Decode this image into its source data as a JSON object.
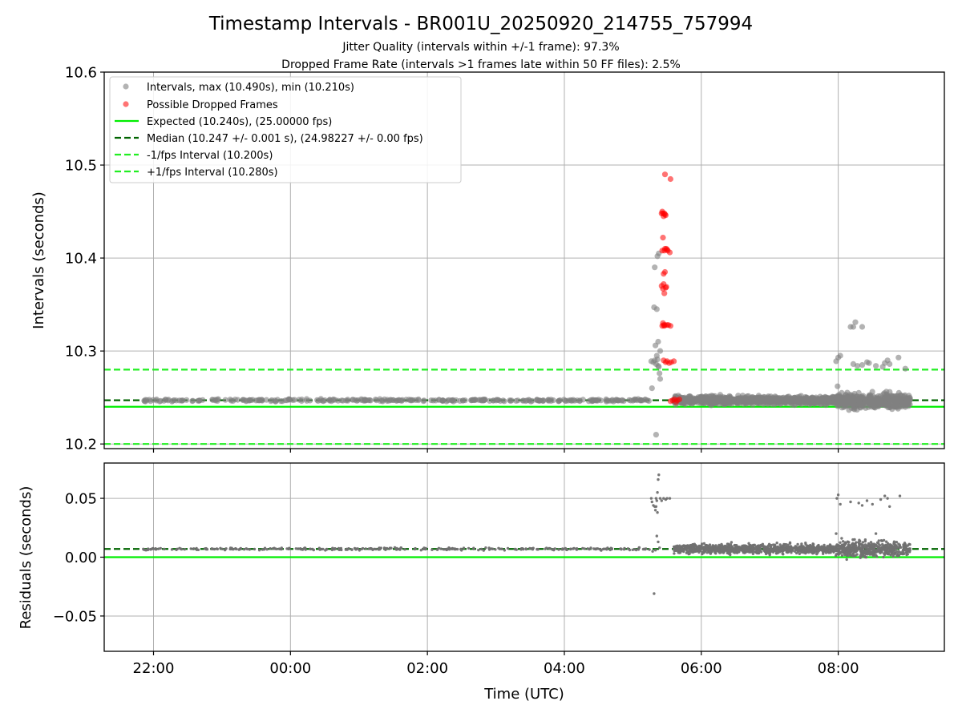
{
  "figure": {
    "title": "Timestamp Intervals - BR001U_20250920_214755_757994",
    "subtitle_jitter": "Jitter Quality (intervals within +/-1 frame): 97.3%",
    "subtitle_dropped": "Dropped Frame Rate (intervals >1 frames late within 50 FF files): 2.5%",
    "xlabel": "Time (UTC)"
  },
  "colors": {
    "intervals": "#808080",
    "dropped": "#ff0000",
    "expected": "#00ee00",
    "median": "#006400",
    "fps_bounds": "#22ee22",
    "grid": "#b0b0b0",
    "residuals": "#707070"
  },
  "chart_data": [
    {
      "type": "scatter",
      "panel": "intervals",
      "ylabel": "Intervals (seconds)",
      "xlim": [
        -0.72,
        11.55
      ],
      "ylim": [
        10.195,
        10.6
      ],
      "x_unit": "hours relative to 22:00 UTC",
      "x_ticks": [
        0,
        2,
        4,
        6,
        8,
        10
      ],
      "x_tick_labels": [
        "22:00",
        "00:00",
        "02:00",
        "04:00",
        "06:00",
        "08:00"
      ],
      "y_ticks": [
        10.2,
        10.3,
        10.4,
        10.5,
        10.6
      ],
      "y_tick_labels": [
        "10.2",
        "10.3",
        "10.4",
        "10.5",
        "10.6"
      ],
      "grid": true,
      "legend_position": "top-left",
      "legend": [
        "Intervals, max (10.490s), min (10.210s)",
        "Possible Dropped Frames",
        "Expected (10.240s), (25.00000 fps)",
        "Median (10.247 +/- 0.001 s), (24.98227 +/- 0.00 fps)",
        "-1/fps Interval (10.200s)",
        "+1/fps Interval (10.280s)"
      ],
      "reference_lines": [
        {
          "name": "expected",
          "y": 10.24,
          "style": "solid"
        },
        {
          "name": "median",
          "y": 10.247,
          "style": "dashed"
        },
        {
          "name": "minus_one_fps",
          "y": 10.2,
          "style": "dashed"
        },
        {
          "name": "plus_one_fps",
          "y": 10.28,
          "style": "dashed"
        }
      ],
      "series": [
        {
          "name": "intervals_baseline",
          "x_range": [
            -0.15,
            7.25
          ],
          "y": 10.247,
          "spread": 0.0008,
          "count": 300
        },
        {
          "name": "intervals_burst",
          "x": [
            7.27,
            7.3,
            7.32,
            7.34,
            7.35,
            7.36,
            7.37,
            7.38,
            7.39,
            7.4,
            7.32,
            7.36,
            7.38,
            7.31,
            7.35,
            7.37,
            7.33,
            7.4,
            7.28,
            7.34
          ],
          "y": [
            10.289,
            10.288,
            10.29,
            10.286,
            10.295,
            10.291,
            10.284,
            10.283,
            10.276,
            10.27,
            10.39,
            10.402,
            10.405,
            10.347,
            10.345,
            10.31,
            10.306,
            10.3,
            10.26,
            10.21
          ]
        },
        {
          "name": "intervals_dense",
          "x_range": [
            7.6,
            9.95
          ],
          "y": 10.247,
          "spread": 0.0028,
          "count": 900
        },
        {
          "name": "intervals_dense_late",
          "x_range": [
            9.95,
            11.05
          ],
          "y": 10.246,
          "spread": 0.005,
          "count": 450
        },
        {
          "name": "intervals_outliers",
          "x": [
            9.97,
            10.0,
            10.03,
            10.22,
            10.28,
            10.35,
            10.42,
            10.45,
            10.55,
            10.65,
            10.68,
            10.72,
            10.75,
            10.88,
            10.98,
            10.18,
            9.99,
            10.05,
            10.3
          ],
          "y": [
            10.289,
            10.293,
            10.295,
            10.286,
            10.284,
            10.285,
            10.288,
            10.287,
            10.284,
            10.283,
            10.287,
            10.29,
            10.286,
            10.293,
            10.281,
            10.326,
            10.262,
            10.255,
            10.255
          ]
        },
        {
          "name": "intervals_top_outliers",
          "x": [
            10.22,
            10.25,
            10.35
          ],
          "y": [
            10.326,
            10.331,
            10.326
          ]
        },
        {
          "name": "dropped_frames",
          "x": [
            7.42,
            7.43,
            7.44,
            7.45,
            7.46,
            7.47,
            7.48,
            7.44,
            7.47,
            7.49,
            7.51,
            7.43,
            7.46,
            7.5,
            7.54,
            7.42,
            7.45,
            7.48,
            7.44,
            7.46,
            7.49,
            7.45,
            7.47,
            7.44,
            7.45,
            7.46,
            7.43,
            7.47,
            7.5,
            7.52,
            7.55,
            7.45,
            7.48,
            7.5,
            7.53,
            7.56,
            7.6,
            7.55,
            7.58,
            7.61,
            7.63,
            7.65,
            7.68
          ],
          "y": [
            10.448,
            10.45,
            10.448,
            10.445,
            10.448,
            10.447,
            10.446,
            10.422,
            10.41,
            10.41,
            10.408,
            10.408,
            10.408,
            10.409,
            10.406,
            10.37,
            10.372,
            10.368,
            10.367,
            10.362,
            10.369,
            10.383,
            10.385,
            10.33,
            10.328,
            10.327,
            10.327,
            10.328,
            10.328,
            10.328,
            10.327,
            10.29,
            10.288,
            10.289,
            10.287,
            10.288,
            10.289,
            10.246,
            10.247,
            10.248,
            10.245,
            10.247,
            10.248
          ]
        },
        {
          "name": "dropped_frames_top",
          "x": [
            7.47,
            7.55
          ],
          "y": [
            10.49,
            10.485
          ]
        }
      ]
    },
    {
      "type": "scatter",
      "panel": "residuals",
      "ylabel": "Residuals (seconds)",
      "xlabel": "Time (UTC)",
      "xlim": [
        -0.72,
        11.55
      ],
      "ylim": [
        -0.08,
        0.08
      ],
      "y_ticks": [
        -0.05,
        0.0,
        0.05
      ],
      "y_tick_labels": [
        "−0.05",
        "0.00",
        "0.05"
      ],
      "grid": true,
      "reference_lines": [
        {
          "name": "zero",
          "y": 0.0,
          "style": "solid"
        },
        {
          "name": "median",
          "y": 0.007,
          "style": "dashed"
        }
      ],
      "series": [
        {
          "name": "residuals_baseline",
          "x_range": [
            -0.15,
            7.25
          ],
          "y": 0.007,
          "spread": 0.0007,
          "count": 300
        },
        {
          "name": "residuals_burst",
          "x": [
            7.27,
            7.28,
            7.3,
            7.32,
            7.33,
            7.34,
            7.35,
            7.36,
            7.37,
            7.38,
            7.4,
            7.42,
            7.45,
            7.48,
            7.5,
            7.54,
            7.31,
            7.35,
            7.37,
            7.39,
            7.33,
            7.29,
            7.34,
            7.36
          ],
          "y": [
            0.05,
            0.047,
            0.044,
            0.043,
            0.04,
            0.05,
            0.048,
            0.055,
            0.066,
            0.07,
            0.05,
            0.048,
            0.05,
            0.049,
            0.05,
            0.05,
            -0.031,
            0.018,
            0.013,
            0.008,
            0.006,
            0.005,
            0.043,
            0.038
          ]
        },
        {
          "name": "residuals_dense",
          "x_range": [
            7.6,
            9.95
          ],
          "y": 0.007,
          "spread": 0.0026,
          "count": 900
        },
        {
          "name": "residuals_dense_late",
          "x_range": [
            9.95,
            11.05
          ],
          "y": 0.007,
          "spread": 0.0045,
          "count": 450
        },
        {
          "name": "residuals_outliers",
          "x": [
            9.98,
            10.0,
            10.03,
            10.18,
            10.3,
            10.35,
            10.42,
            10.5,
            10.62,
            10.68,
            10.72,
            10.75,
            10.9,
            9.97,
            10.05,
            10.55
          ],
          "y": [
            0.05,
            0.053,
            0.045,
            0.047,
            0.046,
            0.044,
            0.048,
            0.045,
            0.049,
            0.052,
            0.05,
            0.043,
            0.052,
            0.02,
            0.016,
            0.02
          ]
        }
      ]
    }
  ]
}
